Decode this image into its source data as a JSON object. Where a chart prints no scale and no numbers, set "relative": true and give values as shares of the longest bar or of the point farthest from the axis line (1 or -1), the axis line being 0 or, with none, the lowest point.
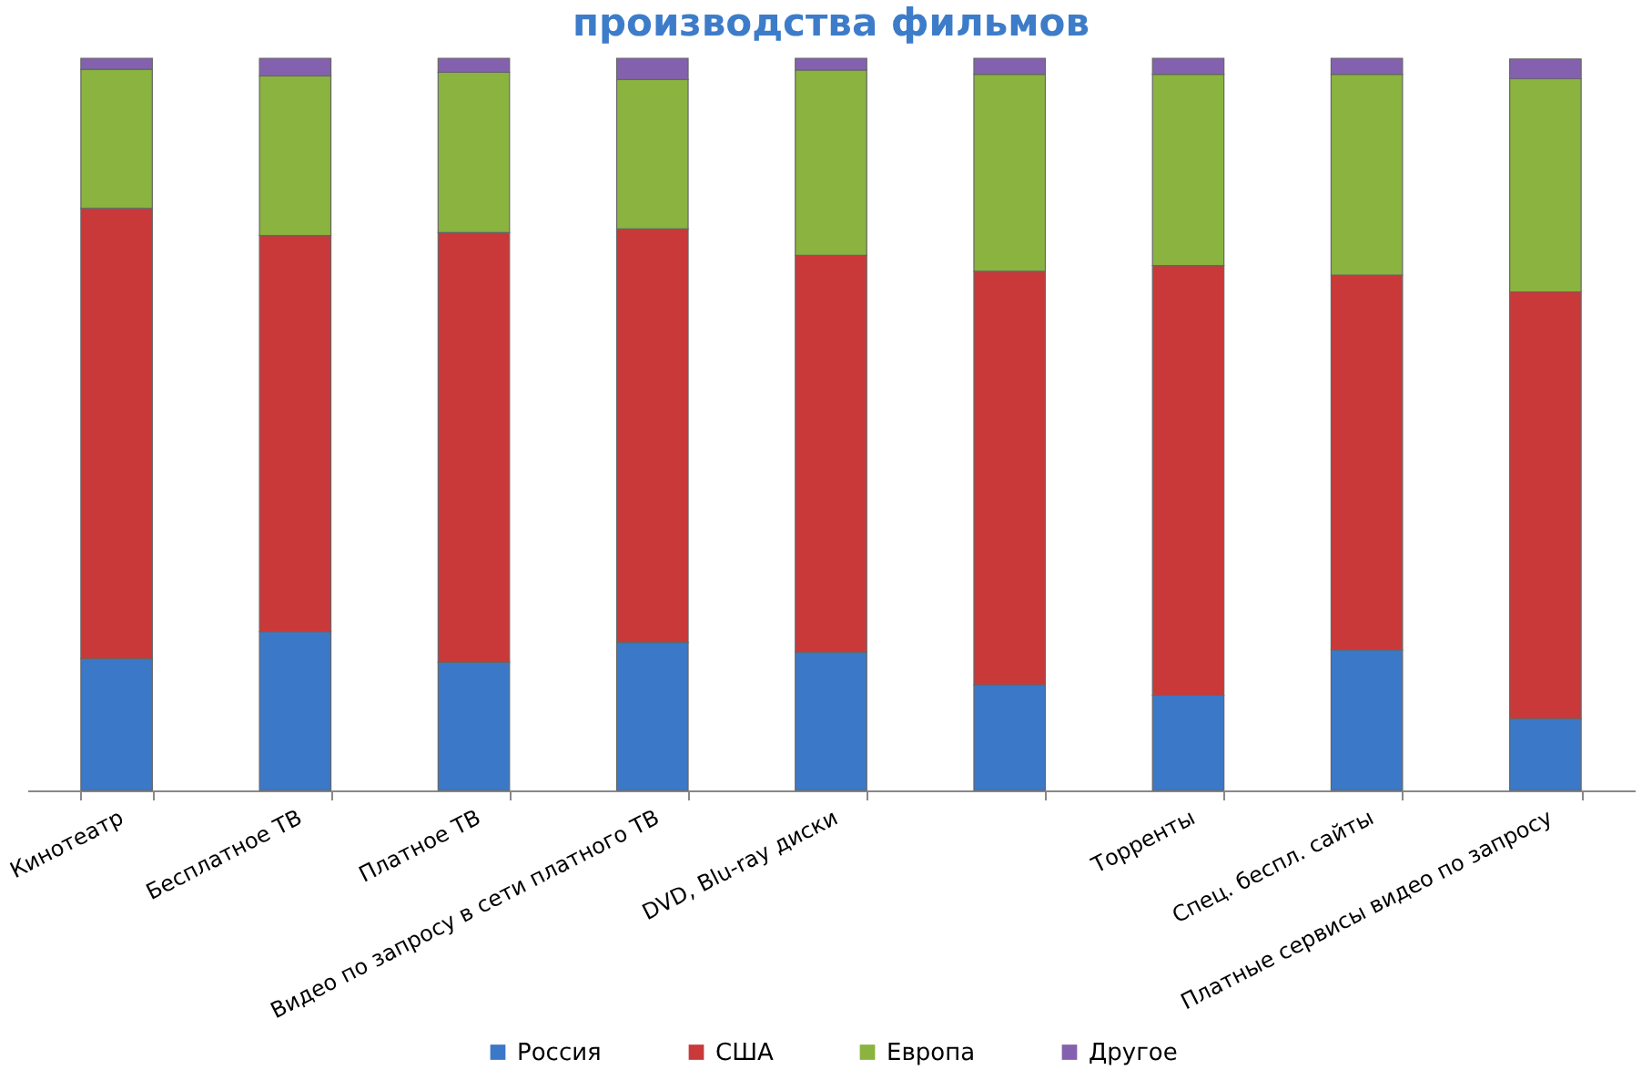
{
  "chart_data": {
    "type": "bar",
    "title": "производства фильмов",
    "stacked": true,
    "relative": true,
    "grid": false,
    "legend": "bottom",
    "categories": [
      "Кинотеатр",
      "Бесплатное ТВ",
      "Платное ТВ",
      "Видео по запросу в сети платного ТВ",
      "DVD, Blu-ray диски",
      null,
      "Торренты",
      "Спец. беспл. сайты",
      "Платные сервисы видео по запросу"
    ],
    "series": [
      {
        "name": "Россия",
        "color": "#3b78c8",
        "values": [
          0.18,
          0.217,
          0.175,
          0.202,
          0.189,
          0.144,
          0.13,
          0.192,
          0.098
        ]
      },
      {
        "name": "США",
        "color": "#c9393a",
        "values": [
          0.615,
          0.541,
          0.587,
          0.565,
          0.542,
          0.565,
          0.587,
          0.512,
          0.583
        ]
      },
      {
        "name": "Европа",
        "color": "#8ab33f",
        "values": [
          0.19,
          0.218,
          0.219,
          0.204,
          0.253,
          0.269,
          0.261,
          0.274,
          0.291
        ]
      },
      {
        "name": "Другое",
        "color": "#8461ae",
        "values": [
          0.015,
          0.024,
          0.019,
          0.029,
          0.016,
          0.022,
          0.022,
          0.022,
          0.027
        ]
      }
    ]
  }
}
